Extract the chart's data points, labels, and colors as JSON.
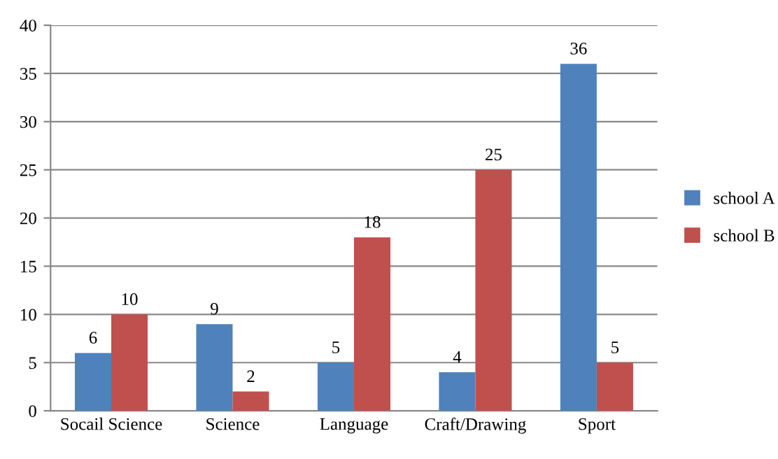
{
  "chart_data": {
    "type": "bar",
    "categories": [
      "Socail Science",
      "Science",
      "Language",
      "Craft/Drawing",
      "Sport"
    ],
    "series": [
      {
        "name": "school A",
        "color": "#4f81bd",
        "values": [
          6,
          9,
          5,
          4,
          36
        ]
      },
      {
        "name": "school B",
        "color": "#c0504d",
        "values": [
          10,
          2,
          18,
          25,
          5
        ]
      }
    ],
    "ylim": [
      0,
      40
    ],
    "yticks": [
      0,
      5,
      10,
      15,
      20,
      25,
      30,
      35,
      40
    ],
    "grid": "y",
    "legend": "right",
    "data_labels": true
  }
}
